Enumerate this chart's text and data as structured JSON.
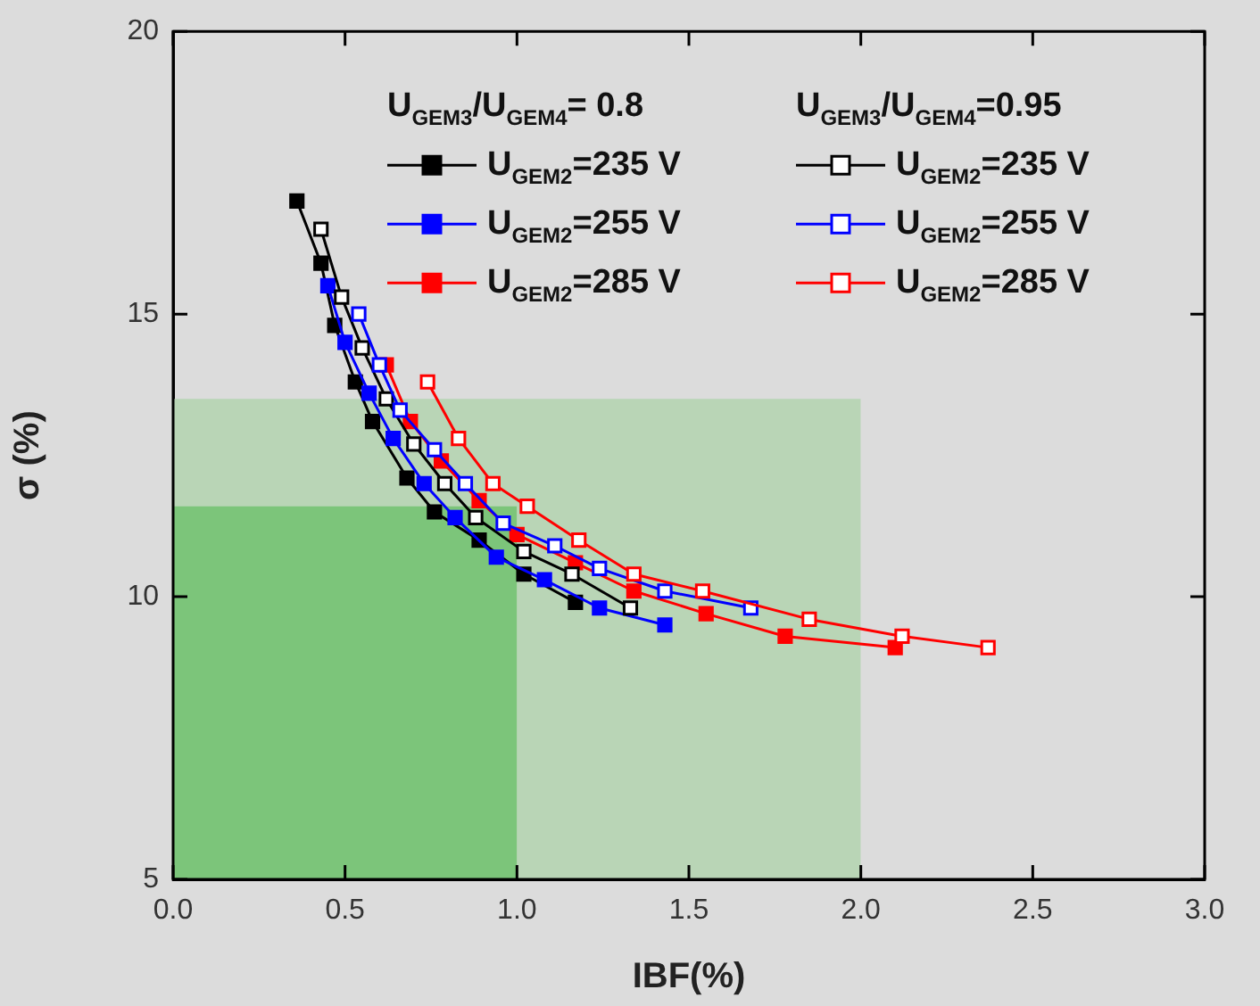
{
  "chart_data": {
    "type": "line",
    "xlabel": "IBF(%)",
    "ylabel": "σ (%)",
    "xlim": [
      0,
      3
    ],
    "xticks": [
      {
        "value": 0,
        "label": "0.0"
      },
      {
        "value": 0.5,
        "label": "0.5"
      },
      {
        "value": 1,
        "label": "1.0"
      },
      {
        "value": 1.5,
        "label": "1.5"
      },
      {
        "value": 2,
        "label": "2.0"
      },
      {
        "value": 2.5,
        "label": "2.5"
      },
      {
        "value": 3,
        "label": "3.0"
      }
    ],
    "ylim": [
      5,
      20
    ],
    "yticks": [
      5,
      10,
      15,
      20
    ],
    "grid": false,
    "legend": "top right",
    "marker": "square",
    "line_style": "solid",
    "legend_title": [
      "U$_{GEM3}$/U$_{GEM4}$= 0.8",
      "U$_{GEM3}$/U$_{GEM4}$=0.95"
    ],
    "series": [
      {
        "name": "U$_{GEM2}$=235 V",
        "color": "#000000",
        "x": [
          0.36,
          0.43,
          0.47,
          0.53,
          0.58,
          0.68,
          0.76,
          0.89,
          1.02,
          1.17
        ],
        "values": [
          17.0,
          15.9,
          14.8,
          13.8,
          13.1,
          12.1,
          11.5,
          11.0,
          10.4,
          9.9
        ]
      },
      {
        "name": "U$_{GEM2}$=255 V",
        "color": "#0000ff",
        "x": [
          0.45,
          0.5,
          0.57,
          0.64,
          0.73,
          0.82,
          0.94,
          1.08,
          1.24,
          1.43
        ],
        "values": [
          15.5,
          14.5,
          13.6,
          12.8,
          12.0,
          11.4,
          10.7,
          10.3,
          9.8,
          9.5
        ]
      },
      {
        "name": "U$_{GEM2}$=285 V",
        "color": "#ff0000",
        "x": [
          0.62,
          0.69,
          0.78,
          0.89,
          1.0,
          1.17,
          1.34,
          1.55,
          1.78,
          2.1
        ],
        "values": [
          14.1,
          13.1,
          12.4,
          11.7,
          11.1,
          10.6,
          10.1,
          9.7,
          9.3,
          9.1
        ]
      },
      {
        "name": "U$_{GEM2}$=235 V",
        "color": "#000000",
        "marker": "square-open",
        "x": [
          0.43,
          0.49,
          0.55,
          0.62,
          0.7,
          0.79,
          0.88,
          1.02,
          1.16,
          1.33
        ],
        "values": [
          16.5,
          15.3,
          14.4,
          13.5,
          12.7,
          12.0,
          11.4,
          10.8,
          10.4,
          9.8
        ]
      },
      {
        "name": "U$_{GEM2}$=255 V",
        "color": "#0000ff",
        "marker": "square-open",
        "x": [
          0.54,
          0.6,
          0.66,
          0.76,
          0.85,
          0.96,
          1.11,
          1.24,
          1.43,
          1.68
        ],
        "values": [
          15.0,
          14.1,
          13.3,
          12.6,
          12.0,
          11.3,
          10.9,
          10.5,
          10.1,
          9.8
        ]
      },
      {
        "name": "U$_{GEM2}$=285 V",
        "color": "#ff0000",
        "marker": "square-open",
        "x": [
          0.74,
          0.83,
          0.93,
          1.03,
          1.18,
          1.34,
          1.54,
          1.85,
          2.12,
          2.37
        ],
        "values": [
          13.8,
          12.8,
          12.0,
          11.6,
          11.0,
          10.4,
          10.1,
          9.6,
          9.3,
          9.1
        ]
      },
      {
        "type": "area",
        "color": "#b9d5b6",
        "marker": "none",
        "x": [
          0,
          2
        ],
        "values": [
          13.5,
          13.5
        ]
      },
      {
        "type": "area",
        "color": "#7cc57a",
        "marker": "none",
        "x": [
          0,
          1
        ],
        "values": [
          11.6,
          11.6
        ]
      }
    ]
  }
}
